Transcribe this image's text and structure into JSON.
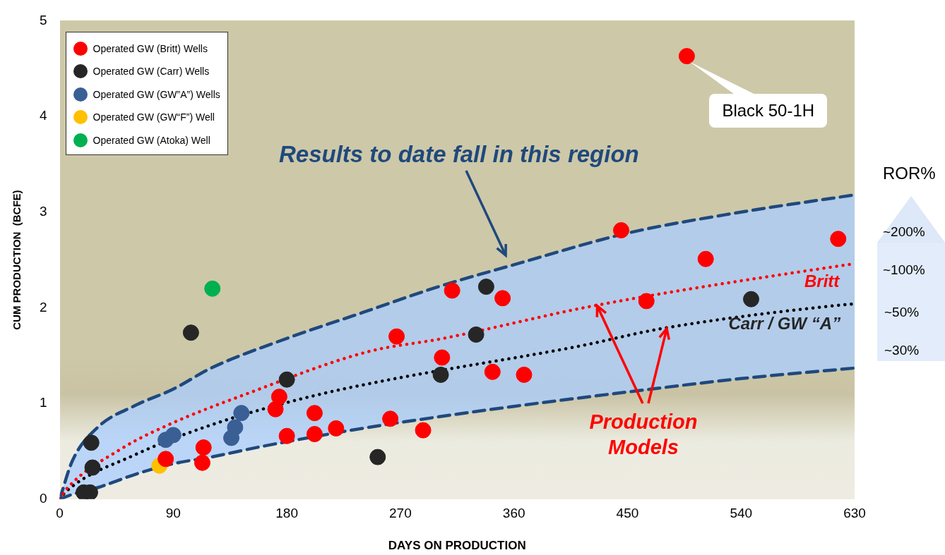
{
  "chart_data": {
    "type": "scatter",
    "xlabel": "DAYS ON PRODUCTION",
    "ylabel": "CUM PRODUCTION  (BCFE)",
    "xlim": [
      0,
      630
    ],
    "xticks": [
      0,
      90,
      180,
      270,
      360,
      450,
      540,
      630
    ],
    "ylim": [
      0,
      5
    ],
    "yticks": [
      0,
      1,
      2,
      3,
      4,
      5
    ],
    "grid": false,
    "legend": "top left",
    "marker": "circle",
    "series": [
      {
        "type": "line",
        "color": "#1f497d",
        "line_style": "dashed",
        "marker": "none",
        "x": [
          0,
          10,
          30,
          60,
          90,
          120,
          160,
          240,
          300,
          360,
          450,
          540,
          630
        ],
        "values": [
          0,
          0.05,
          0.12,
          0.26,
          0.37,
          0.44,
          0.55,
          0.74,
          0.86,
          0.97,
          1.12,
          1.26,
          1.37
        ]
      },
      {
        "type": "line",
        "color": "#1f497d",
        "line_style": "dashed",
        "marker": "none",
        "x": [
          0,
          10,
          30,
          60,
          90,
          120,
          180,
          240,
          300,
          360,
          450,
          540,
          630
        ],
        "values": [
          0,
          0.4,
          0.75,
          0.98,
          1.15,
          1.37,
          1.68,
          1.95,
          2.22,
          2.45,
          2.78,
          3.0,
          3.18
        ]
      },
      {
        "type": "line",
        "name": "Britt",
        "color": "#ff0000",
        "line_style": "dotted",
        "marker": "none",
        "x": [
          0,
          5,
          48,
          85,
          146,
          244,
          304,
          423,
          619,
          630
        ],
        "values": [
          0,
          0.1,
          0.52,
          0.77,
          1.09,
          1.54,
          1.68,
          2.02,
          2.44,
          2.46
        ]
      },
      {
        "type": "line",
        "name": "Carr / GW “A”",
        "color": "#000000",
        "line_style": "dotted",
        "marker": "none",
        "x": [
          0,
          5,
          59,
          121,
          198,
          258,
          412,
          476,
          620,
          630
        ],
        "values": [
          0,
          0.08,
          0.46,
          0.78,
          1.07,
          1.24,
          1.6,
          1.78,
          2.03,
          2.04
        ]
      },
      {
        "type": "scatter",
        "name": "Operated GW (Britt) Wells",
        "color": "#ff0000",
        "x": [
          84,
          114,
          113,
          174,
          171,
          180,
          202,
          202,
          219,
          262,
          288,
          267,
          303,
          311,
          351,
          343,
          368,
          445,
          465,
          512,
          617,
          497
        ],
        "values": [
          0.42,
          0.54,
          0.38,
          1.07,
          0.94,
          0.66,
          0.9,
          0.68,
          0.74,
          0.84,
          0.72,
          1.7,
          1.48,
          2.18,
          2.1,
          1.33,
          1.3,
          2.81,
          2.07,
          2.51,
          2.72,
          4.63
        ]
      },
      {
        "type": "scatter",
        "name": "Operated GW (Carr) Wells",
        "color": "#262626",
        "x": [
          25,
          26,
          19,
          24,
          104,
          180,
          252,
          302,
          330,
          338,
          548
        ],
        "values": [
          0.59,
          0.33,
          0.07,
          0.07,
          1.74,
          1.25,
          0.44,
          1.3,
          1.72,
          2.22,
          2.09
        ]
      },
      {
        "type": "scatter",
        "name": "Operated GW (GW”A”) Wells",
        "color": "#3a5f95",
        "x": [
          84,
          90,
          144,
          139,
          136
        ],
        "values": [
          0.62,
          0.67,
          0.9,
          0.75,
          0.64
        ]
      },
      {
        "type": "scatter",
        "name": "Operated GW (GW“F”) Well",
        "color": "#ffc000",
        "x": [
          79
        ],
        "values": [
          0.35
        ]
      },
      {
        "type": "scatter",
        "name": "Operated GW (Atoka) Well",
        "color": "#00b050",
        "x": [
          121
        ],
        "values": [
          2.2
        ]
      }
    ],
    "annotations": [
      {
        "text": "Black 50-1H",
        "x": 497,
        "y": 4.63
      },
      "Results to date fall in this region",
      {
        "text": "Production Models",
        "x": 426,
        "y": 2.02
      },
      "ROR%",
      "~200%",
      "~100%",
      "~50%",
      "~30%"
    ]
  }
}
